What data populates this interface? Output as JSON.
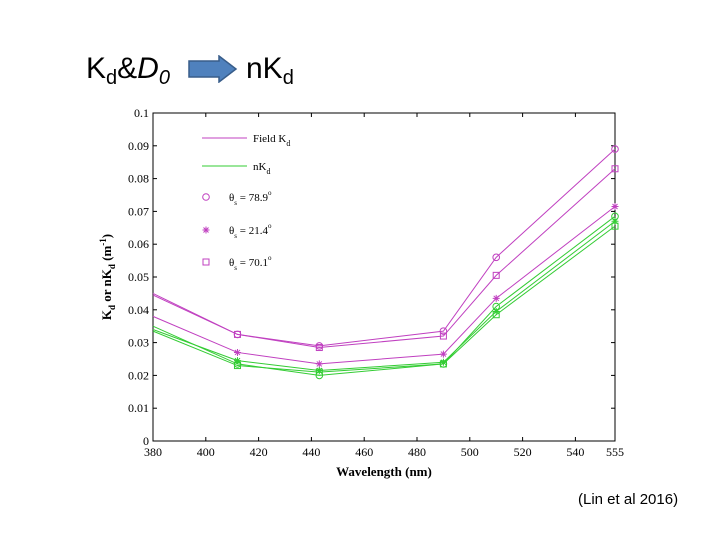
{
  "heading_left": {
    "base": "K",
    "sub": "d",
    "amp": "&",
    "italic": "D",
    "italic_sub": "0"
  },
  "heading_right": {
    "base": "nK",
    "sub": "d"
  },
  "arrow_icon": "right-arrow-icon",
  "citation": "(Lin et al 2016)",
  "colors": {
    "field": "#c040c0",
    "nkd": "#33cc33",
    "axis": "#000000",
    "arrow_fill": "#4f81bd",
    "arrow_stroke": "#385d8a"
  },
  "chart_data": {
    "type": "line",
    "xlabel": "Wavelength (nm)",
    "ylabel": {
      "main": "K",
      "sub1": "d",
      "mid": " or nK",
      "sub2": "d",
      "unit": " (m",
      "exp": "-1",
      "close": ")"
    },
    "xlim": [
      380,
      555
    ],
    "ylim": [
      0,
      0.1
    ],
    "xticks": [
      380,
      400,
      420,
      440,
      460,
      480,
      500,
      520,
      540,
      555
    ],
    "yticks": [
      0,
      0.01,
      0.02,
      0.03,
      0.04,
      0.05,
      0.06,
      0.07,
      0.08,
      0.09,
      0.1
    ],
    "ytick_labels": [
      "0",
      "0.01",
      "0.02",
      "0.03",
      "0.04",
      "0.05",
      "0.06",
      "0.07",
      "0.08",
      "0.09",
      "0.1"
    ],
    "x": [
      380,
      412,
      443,
      490,
      510,
      555
    ],
    "legend": [
      {
        "kind": "line",
        "group": "field",
        "label": "Field K",
        "sub": "d"
      },
      {
        "kind": "line",
        "group": "nkd",
        "label": "nK",
        "sub": "d"
      },
      {
        "kind": "marker",
        "marker": "circle",
        "label": "θ",
        "sub": "s",
        "eq": " = 78.9",
        "deg": "o"
      },
      {
        "kind": "marker",
        "marker": "star",
        "label": "θ",
        "sub": "s",
        "eq": " = 21.4",
        "deg": "o"
      },
      {
        "kind": "marker",
        "marker": "square",
        "label": "θ",
        "sub": "s",
        "eq": " = 70.1",
        "deg": "o"
      }
    ],
    "series": [
      {
        "name": "Field Kd θs=78.9",
        "group": "field",
        "marker": "circle",
        "values": [
          0.045,
          0.0325,
          0.029,
          0.0335,
          0.056,
          0.089
        ]
      },
      {
        "name": "Field Kd θs=70.1",
        "group": "field",
        "marker": "square",
        "values": [
          0.0445,
          0.0325,
          0.0285,
          0.032,
          0.0505,
          0.083
        ]
      },
      {
        "name": "Field Kd θs=21.4",
        "group": "field",
        "marker": "star",
        "values": [
          0.038,
          0.027,
          0.0235,
          0.0265,
          0.0435,
          0.0715
        ]
      },
      {
        "name": "nKd θs=78.9",
        "group": "nkd",
        "marker": "circle",
        "values": [
          0.035,
          0.0235,
          0.02,
          0.0235,
          0.041,
          0.0685
        ]
      },
      {
        "name": "nKd θs=21.4",
        "group": "nkd",
        "marker": "star",
        "values": [
          0.034,
          0.0245,
          0.0215,
          0.024,
          0.0395,
          0.067
        ]
      },
      {
        "name": "nKd θs=70.1",
        "group": "nkd",
        "marker": "square",
        "values": [
          0.0335,
          0.023,
          0.021,
          0.0235,
          0.0385,
          0.0655
        ]
      }
    ]
  }
}
